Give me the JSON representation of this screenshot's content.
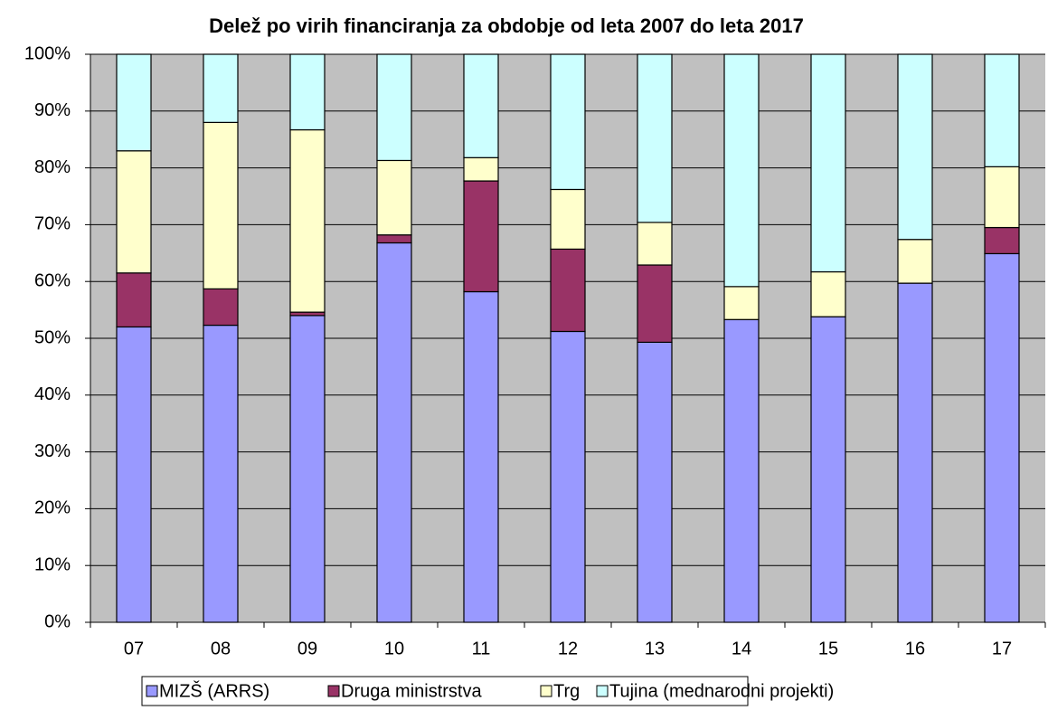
{
  "chart_data": {
    "type": "stacked_bar",
    "title": "Delež po virih financiranja za obdobje od leta 2007 do leta 2017",
    "categories": [
      "07",
      "08",
      "09",
      "10",
      "11",
      "12",
      "13",
      "14",
      "15",
      "16",
      "17"
    ],
    "series": [
      {
        "name": "MIZŠ (ARRS)",
        "color": "#9999ff",
        "values": [
          52,
          52.3,
          54,
          66.8,
          58.2,
          51.2,
          49.3,
          53.3,
          53.8,
          59.7,
          64.9
        ]
      },
      {
        "name": "Druga ministrstva",
        "color": "#993366",
        "values": [
          9.5,
          6.4,
          0.6,
          1.4,
          19.5,
          14.5,
          13.6,
          0,
          0,
          0,
          4.6
        ]
      },
      {
        "name": "Trg",
        "color": "#ffffcc",
        "values": [
          21.5,
          29.3,
          32.1,
          13.1,
          4.1,
          10.5,
          7.5,
          5.8,
          7.9,
          7.7,
          10.7
        ]
      },
      {
        "name": "Tujina (mednarodni projekti)",
        "color": "#ccffff",
        "values": [
          17,
          12,
          13.3,
          18.7,
          18.2,
          23.8,
          29.6,
          40.9,
          38.3,
          32.6,
          19.8
        ]
      }
    ],
    "ylim": [
      0,
      100
    ],
    "yticks": [
      {
        "value": 0,
        "label": "0%"
      },
      {
        "value": 10,
        "label": "10%"
      },
      {
        "value": 20,
        "label": "20%"
      },
      {
        "value": 30,
        "label": "30%"
      },
      {
        "value": 40,
        "label": "40%"
      },
      {
        "value": 50,
        "label": "50%"
      },
      {
        "value": 60,
        "label": "60%"
      },
      {
        "value": 70,
        "label": "70%"
      },
      {
        "value": 80,
        "label": "80%"
      },
      {
        "value": 90,
        "label": "90%"
      },
      {
        "value": 100,
        "label": "100%"
      }
    ],
    "grid": true,
    "background": "#c0c0c0",
    "legend": "bottom"
  }
}
